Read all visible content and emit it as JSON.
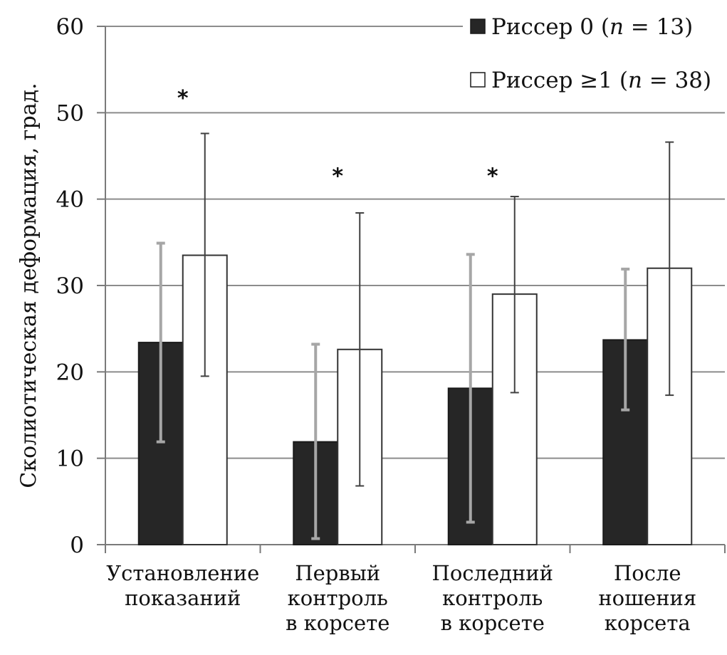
{
  "chart_data": {
    "type": "bar",
    "title": "",
    "xlabel": "",
    "ylabel": "Сколиотическая деформация, град.",
    "ylim": [
      0,
      60
    ],
    "yticks": [
      0,
      10,
      20,
      30,
      40,
      50,
      60
    ],
    "grid": true,
    "legend_position": "top-right",
    "categories": [
      [
        "Установление",
        "показаний"
      ],
      [
        "Первый",
        "контроль",
        "в корсете"
      ],
      [
        "Последний",
        "контроль",
        "в корсете"
      ],
      [
        "После",
        "ношения",
        "корсета"
      ]
    ],
    "series": [
      {
        "name": "Риссер 0 (n = 13)",
        "legend_prefix": "Риссер 0 (",
        "legend_n": "n",
        "legend_suffix": " = 13)",
        "fill": "#262626",
        "error_color": "#a6a6a6",
        "values": [
          23.4,
          11.9,
          18.1,
          23.7
        ],
        "error_upper": [
          34.9,
          23.2,
          33.6,
          31.9
        ],
        "error_lower": [
          11.9,
          0.7,
          2.6,
          15.6
        ]
      },
      {
        "name": "Риссер ≥1 (n = 38)",
        "legend_prefix": "Риссер ≥1 (",
        "legend_n": "n",
        "legend_suffix": " = 38)",
        "fill": "#ffffff",
        "error_color": "#404040",
        "values": [
          33.5,
          22.6,
          29.0,
          32.0
        ],
        "error_upper": [
          47.6,
          38.4,
          40.3,
          46.6
        ],
        "error_lower": [
          19.5,
          6.8,
          17.6,
          17.3
        ]
      }
    ],
    "annotations": [
      {
        "category_index": 0,
        "text": "*",
        "y": 52
      },
      {
        "category_index": 1,
        "text": "*",
        "y": 43
      },
      {
        "category_index": 2,
        "text": "*",
        "y": 43
      }
    ]
  }
}
